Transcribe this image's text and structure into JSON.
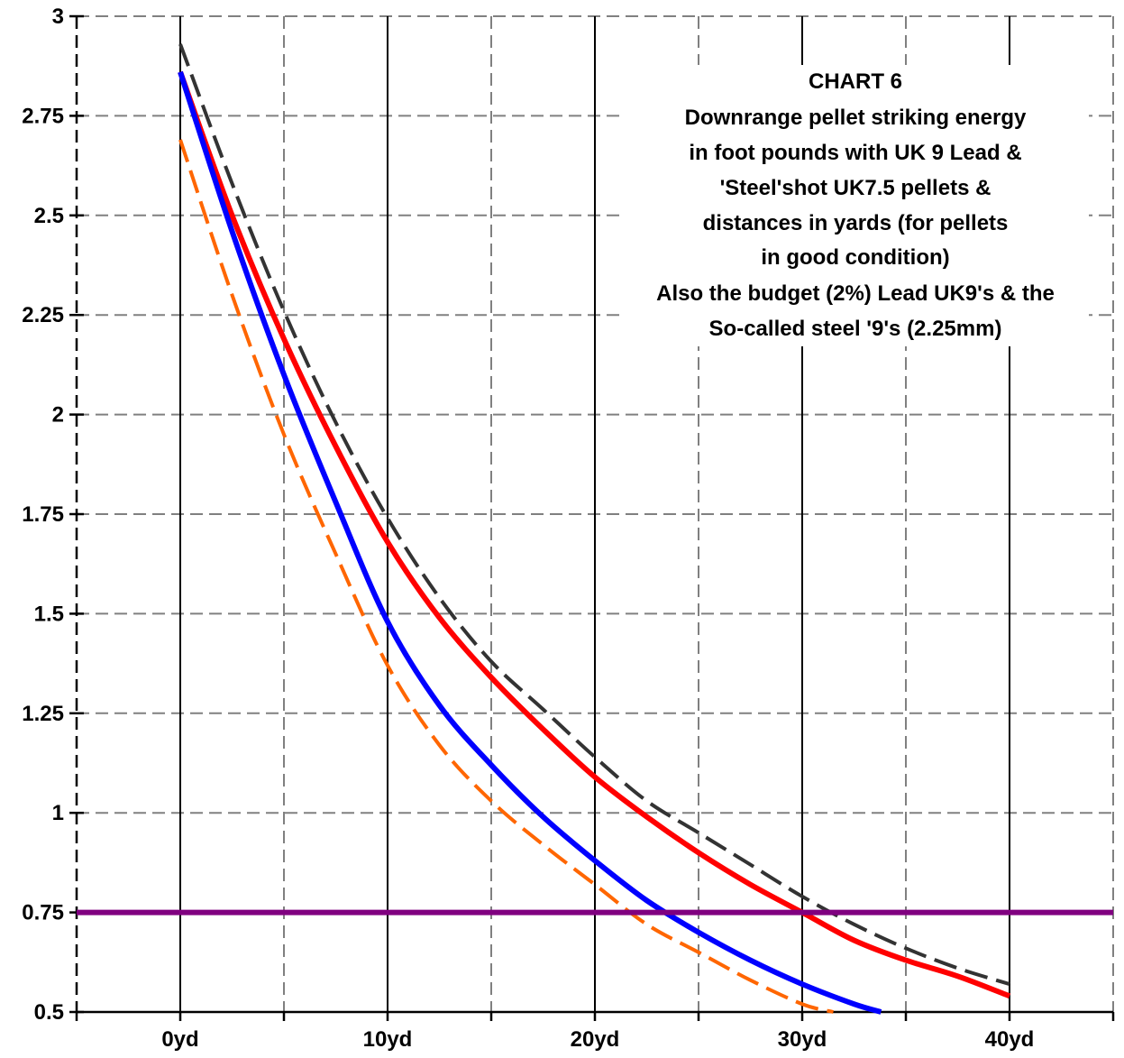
{
  "chart_data": {
    "type": "line",
    "title_lines": [
      "CHART 6",
      "Downrange pellet striking energy",
      "in foot pounds with UK 9 Lead &",
      "'Steel'shot UK7.5 pellets &",
      "distances in yards (for pellets",
      "in good condition)",
      "Also the budget (2%) Lead UK9's & the",
      "So-called steel '9's (2.25mm)"
    ],
    "xlabel": "",
    "ylabel": "",
    "x_ticks": [
      0,
      10,
      20,
      30,
      40
    ],
    "x_tick_labels": [
      "0yd",
      "10yd",
      "20yd",
      "30yd",
      "40yd"
    ],
    "y_ticks": [
      0.5,
      0.75,
      1,
      1.25,
      1.5,
      1.75,
      2,
      2.25,
      2.5,
      2.75,
      3
    ],
    "y_tick_labels": [
      "0.5",
      "0.75",
      "1",
      "1.25",
      "1.5",
      "1.75",
      "2",
      "2.25",
      "2.5",
      "2.75",
      "3"
    ],
    "xlim": [
      -5,
      45
    ],
    "ylim": [
      0.5,
      3
    ],
    "grid": true,
    "series": [
      {
        "color": "#333333",
        "style": "dashed",
        "x": [
          0,
          2.5,
          5,
          7.5,
          10,
          12.5,
          15,
          17.5,
          20,
          22.5,
          25,
          27.5,
          30,
          32.5,
          35,
          37.5,
          40
        ],
        "values": [
          2.93,
          2.58,
          2.26,
          1.98,
          1.74,
          1.54,
          1.38,
          1.26,
          1.14,
          1.03,
          0.95,
          0.87,
          0.79,
          0.72,
          0.66,
          0.61,
          0.57
        ]
      },
      {
        "color": "#ff0000",
        "style": "solid",
        "x": [
          0,
          2.5,
          5,
          7.5,
          10,
          12.5,
          15,
          17.5,
          20,
          22.5,
          25,
          27.5,
          30,
          32.5,
          35,
          37.5,
          40
        ],
        "values": [
          2.86,
          2.5,
          2.19,
          1.92,
          1.68,
          1.49,
          1.34,
          1.21,
          1.09,
          0.99,
          0.9,
          0.82,
          0.75,
          0.68,
          0.63,
          0.59,
          0.54
        ]
      },
      {
        "color": "#ff6600",
        "style": "dashed",
        "x": [
          0,
          2.5,
          5,
          7.5,
          10,
          12.5,
          15,
          17.5,
          20,
          22.5,
          25,
          27.5,
          30,
          31.5
        ],
        "values": [
          2.69,
          2.3,
          1.95,
          1.65,
          1.37,
          1.17,
          1.03,
          0.92,
          0.82,
          0.72,
          0.65,
          0.58,
          0.52,
          0.5
        ]
      },
      {
        "color": "#0000ff",
        "style": "solid",
        "x": [
          0,
          2.5,
          5,
          7.5,
          10,
          12.5,
          15,
          17.5,
          20,
          22.5,
          25,
          27.5,
          30,
          32.5,
          33.8
        ],
        "values": [
          2.86,
          2.46,
          2.1,
          1.78,
          1.48,
          1.27,
          1.12,
          0.99,
          0.88,
          0.78,
          0.7,
          0.63,
          0.57,
          0.52,
          0.5
        ]
      },
      {
        "color": "#800080",
        "style": "solid",
        "x": [
          -5,
          45
        ],
        "values": [
          0.75,
          0.75
        ]
      }
    ]
  }
}
